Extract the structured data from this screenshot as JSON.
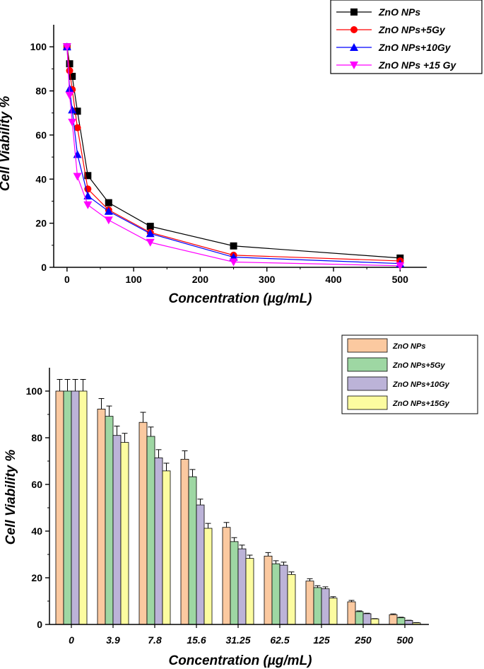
{
  "chart_data": [
    {
      "type": "line",
      "xlabel": "Concentration (µg/mL)",
      "ylabel": "Cell Viability %",
      "xlim": [
        -20,
        540
      ],
      "ylim": [
        0,
        110
      ],
      "xticks": [
        "0",
        "100",
        "200",
        "300",
        "400",
        "500"
      ],
      "yticks": [
        "0",
        "20",
        "40",
        "60",
        "80",
        "100"
      ],
      "legend_position": "top-right",
      "x": [
        0,
        3.9,
        7.8,
        15.6,
        31.25,
        62.5,
        125,
        250,
        500
      ],
      "series": [
        {
          "name": "ZnO NPs",
          "color": "#000000",
          "marker": "square",
          "values": [
            100,
            92.3,
            86.6,
            70.8,
            41.6,
            29.3,
            18.6,
            9.7,
            4.2
          ]
        },
        {
          "name": "ZnO NPs+5Gy",
          "color": "#ff0000",
          "marker": "circle",
          "values": [
            100,
            89.2,
            80.6,
            63.3,
            35.5,
            26.0,
            15.8,
            5.5,
            2.9
          ]
        },
        {
          "name": "ZnO NPs+10Gy",
          "color": "#0000ff",
          "marker": "triangle-up",
          "values": [
            100,
            81.0,
            71.4,
            51.2,
            32.4,
            25.4,
            15.3,
            4.6,
            1.7
          ]
        },
        {
          "name": "ZnO NPs +15 Gy",
          "color": "#ff00ff",
          "marker": "triangle-down",
          "values": [
            100,
            78.0,
            65.8,
            41.2,
            28.3,
            21.4,
            11.3,
            2.4,
            0.7
          ]
        }
      ]
    },
    {
      "type": "bar",
      "xlabel": "Concentration (µg/mL)",
      "ylabel": "Cell Viability %",
      "ylim": [
        0,
        110
      ],
      "yticks": [
        "0",
        "20",
        "40",
        "60",
        "80",
        "100"
      ],
      "legend_position": "top-right",
      "categories": [
        "0",
        "3.9",
        "7.8",
        "15.6",
        "31.25",
        "62.5",
        "125",
        "250",
        "500"
      ],
      "series": [
        {
          "name": "ZnO NPs",
          "color": "#fbc9a0",
          "values": [
            100,
            92.3,
            86.6,
            70.8,
            41.6,
            29.3,
            18.6,
            9.7,
            4.2
          ],
          "errors": [
            5,
            4.5,
            4.3,
            3.6,
            2.1,
            1.5,
            1.0,
            0.6,
            0.3
          ]
        },
        {
          "name": "ZnO NPs+5Gy",
          "color": "#9ed7a3",
          "values": [
            100,
            89.2,
            80.6,
            63.3,
            35.5,
            26.0,
            15.8,
            5.5,
            2.9
          ],
          "errors": [
            5,
            4.4,
            4.0,
            3.1,
            1.7,
            1.3,
            0.8,
            0.3,
            0.2
          ]
        },
        {
          "name": "ZnO NPs+10Gy",
          "color": "#bcb3d8",
          "values": [
            100,
            81.0,
            71.4,
            51.2,
            32.4,
            25.4,
            15.3,
            4.6,
            1.7
          ],
          "errors": [
            5,
            4.0,
            3.5,
            2.5,
            1.6,
            1.3,
            0.8,
            0.2,
            0.1
          ]
        },
        {
          "name": "ZnO NPs+15Gy",
          "color": "#fcfca0",
          "values": [
            100,
            78.0,
            65.8,
            41.2,
            28.3,
            21.4,
            11.3,
            2.4,
            0.7
          ],
          "errors": [
            5,
            3.9,
            3.3,
            2.1,
            1.4,
            1.1,
            0.6,
            0.1,
            0.1
          ]
        }
      ]
    }
  ]
}
